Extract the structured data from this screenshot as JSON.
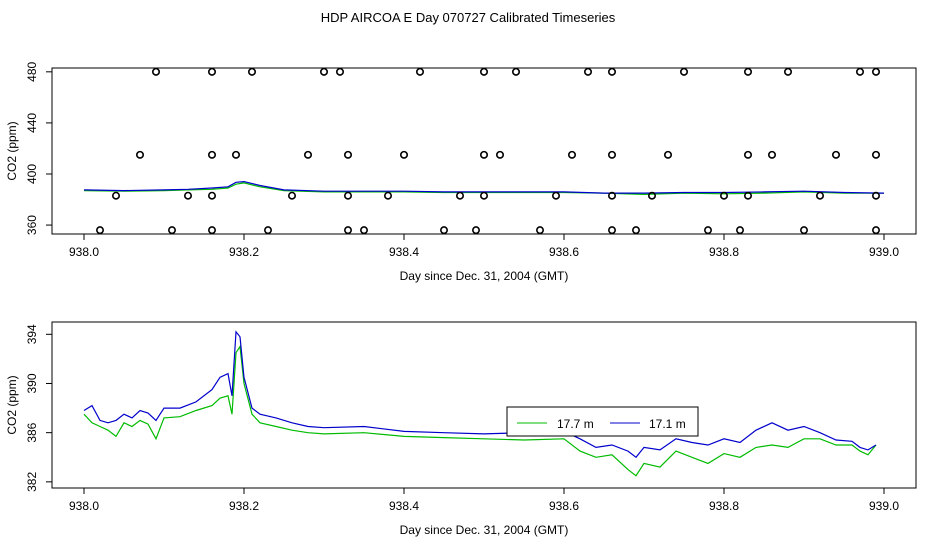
{
  "title": "HDP AIRCOA E  Day 070727  Calibrated Timeseries",
  "chart_data": [
    {
      "type": "scatter",
      "xlabel": "Day since Dec. 31, 2004 (GMT)",
      "ylabel": "CO2 (ppm)",
      "xlim": [
        937.96,
        939.04
      ],
      "ylim": [
        353,
        483
      ],
      "xticks": [
        "938.0",
        "938.2",
        "938.4",
        "938.6",
        "938.8",
        "939.0"
      ],
      "yticks": [
        "360",
        "400",
        "440",
        "480"
      ],
      "points": [
        {
          "x": 938.09,
          "y": 480
        },
        {
          "x": 938.16,
          "y": 480
        },
        {
          "x": 938.21,
          "y": 480
        },
        {
          "x": 938.3,
          "y": 480
        },
        {
          "x": 938.32,
          "y": 480
        },
        {
          "x": 938.42,
          "y": 480
        },
        {
          "x": 938.5,
          "y": 480
        },
        {
          "x": 938.54,
          "y": 480
        },
        {
          "x": 938.63,
          "y": 480
        },
        {
          "x": 938.66,
          "y": 480
        },
        {
          "x": 938.75,
          "y": 480
        },
        {
          "x": 938.83,
          "y": 480
        },
        {
          "x": 938.88,
          "y": 480
        },
        {
          "x": 938.97,
          "y": 480
        },
        {
          "x": 938.99,
          "y": 480
        },
        {
          "x": 938.07,
          "y": 415
        },
        {
          "x": 938.16,
          "y": 415
        },
        {
          "x": 938.19,
          "y": 415
        },
        {
          "x": 938.28,
          "y": 415
        },
        {
          "x": 938.33,
          "y": 415
        },
        {
          "x": 938.4,
          "y": 415
        },
        {
          "x": 938.5,
          "y": 415
        },
        {
          "x": 938.52,
          "y": 415
        },
        {
          "x": 938.61,
          "y": 415
        },
        {
          "x": 938.66,
          "y": 415
        },
        {
          "x": 938.73,
          "y": 415
        },
        {
          "x": 938.83,
          "y": 415
        },
        {
          "x": 938.86,
          "y": 415
        },
        {
          "x": 938.94,
          "y": 415
        },
        {
          "x": 938.99,
          "y": 415
        },
        {
          "x": 938.04,
          "y": 383
        },
        {
          "x": 938.13,
          "y": 383
        },
        {
          "x": 938.16,
          "y": 383
        },
        {
          "x": 938.26,
          "y": 383
        },
        {
          "x": 938.33,
          "y": 383
        },
        {
          "x": 938.38,
          "y": 383
        },
        {
          "x": 938.47,
          "y": 383
        },
        {
          "x": 938.5,
          "y": 383
        },
        {
          "x": 938.59,
          "y": 383
        },
        {
          "x": 938.66,
          "y": 383
        },
        {
          "x": 938.71,
          "y": 383
        },
        {
          "x": 938.8,
          "y": 383
        },
        {
          "x": 938.83,
          "y": 383
        },
        {
          "x": 938.92,
          "y": 383
        },
        {
          "x": 938.99,
          "y": 383
        },
        {
          "x": 938.02,
          "y": 356
        },
        {
          "x": 938.11,
          "y": 356
        },
        {
          "x": 938.16,
          "y": 356
        },
        {
          "x": 938.23,
          "y": 356
        },
        {
          "x": 938.33,
          "y": 356
        },
        {
          "x": 938.35,
          "y": 356
        },
        {
          "x": 938.45,
          "y": 356
        },
        {
          "x": 938.49,
          "y": 356
        },
        {
          "x": 938.57,
          "y": 356
        },
        {
          "x": 938.66,
          "y": 356
        },
        {
          "x": 938.69,
          "y": 356
        },
        {
          "x": 938.78,
          "y": 356
        },
        {
          "x": 938.82,
          "y": 356
        },
        {
          "x": 938.9,
          "y": 356
        },
        {
          "x": 938.99,
          "y": 356
        }
      ],
      "series": [
        {
          "color": "#00bb00",
          "x": [
            938.0,
            938.05,
            938.1,
            938.13,
            938.16,
            938.18,
            938.19,
            938.2,
            938.22,
            938.25,
            938.3,
            938.35,
            938.4,
            938.45,
            938.5,
            938.55,
            938.6,
            938.65,
            938.7,
            938.75,
            938.8,
            938.85,
            938.9,
            938.95,
            939.0
          ],
          "y": [
            387,
            386.5,
            387,
            387.5,
            388,
            389,
            392,
            393,
            390,
            387,
            386,
            386,
            386,
            385.5,
            385.5,
            385.5,
            385.5,
            385,
            384,
            385,
            384.5,
            385,
            386,
            385,
            385
          ]
        },
        {
          "color": "#0000cc",
          "x": [
            938.0,
            938.05,
            938.1,
            938.13,
            938.16,
            938.18,
            938.19,
            938.2,
            938.22,
            938.25,
            938.3,
            938.35,
            938.4,
            938.45,
            938.5,
            938.55,
            938.6,
            938.65,
            938.7,
            938.75,
            938.8,
            938.85,
            938.9,
            938.95,
            939.0
          ],
          "y": [
            387.5,
            387,
            387.5,
            388,
            389,
            390,
            393.5,
            394,
            391,
            387.5,
            386.5,
            386.5,
            386.5,
            386,
            386,
            386,
            386,
            385,
            385,
            385.5,
            385.5,
            386,
            386.5,
            385.5,
            385
          ]
        }
      ]
    },
    {
      "type": "line",
      "xlabel": "Day since Dec. 31, 2004 (GMT)",
      "ylabel": "CO2 (ppm)",
      "xlim": [
        937.96,
        939.04
      ],
      "ylim": [
        381.5,
        395
      ],
      "xticks": [
        "938.0",
        "938.2",
        "938.4",
        "938.6",
        "938.8",
        "939.0"
      ],
      "yticks": [
        "382",
        "386",
        "390",
        "394"
      ],
      "legend": "center-right",
      "series": [
        {
          "name": "17.7 m",
          "color": "#00bb00",
          "x": [
            938.0,
            938.01,
            938.02,
            938.03,
            938.04,
            938.05,
            938.06,
            938.07,
            938.08,
            938.09,
            938.1,
            938.12,
            938.14,
            938.16,
            938.17,
            938.18,
            938.185,
            938.19,
            938.195,
            938.2,
            938.21,
            938.22,
            938.24,
            938.26,
            938.28,
            938.3,
            938.35,
            938.4,
            938.45,
            938.5,
            938.55,
            938.6,
            938.62,
            938.64,
            938.66,
            938.68,
            938.69,
            938.7,
            938.72,
            938.74,
            938.76,
            938.78,
            938.8,
            938.82,
            938.84,
            938.86,
            938.88,
            938.9,
            938.92,
            938.94,
            938.96,
            938.97,
            938.98,
            938.99
          ],
          "y": [
            387.5,
            386.8,
            386.5,
            386.2,
            385.7,
            386.8,
            386.5,
            387.0,
            386.7,
            385.5,
            387.2,
            387.3,
            387.8,
            388.2,
            388.8,
            389.0,
            387.5,
            392.5,
            393.0,
            390.0,
            387.5,
            386.8,
            386.5,
            386.2,
            386.0,
            385.9,
            386.0,
            385.7,
            385.6,
            385.5,
            385.4,
            385.5,
            384.5,
            384.0,
            384.2,
            383.0,
            382.5,
            383.5,
            383.2,
            384.5,
            384.0,
            383.5,
            384.3,
            384.0,
            384.8,
            385.0,
            384.8,
            385.5,
            385.5,
            385.0,
            385.0,
            384.5,
            384.2,
            385.0
          ]
        },
        {
          "name": "17.1 m",
          "color": "#0000cc",
          "x": [
            938.0,
            938.01,
            938.02,
            938.03,
            938.04,
            938.05,
            938.06,
            938.07,
            938.08,
            938.09,
            938.1,
            938.12,
            938.14,
            938.16,
            938.17,
            938.18,
            938.185,
            938.19,
            938.195,
            938.2,
            938.21,
            938.22,
            938.24,
            938.26,
            938.28,
            938.3,
            938.35,
            938.4,
            938.45,
            938.5,
            938.55,
            938.6,
            938.62,
            938.64,
            938.66,
            938.68,
            938.69,
            938.7,
            938.72,
            938.74,
            938.76,
            938.78,
            938.8,
            938.82,
            938.84,
            938.86,
            938.88,
            938.9,
            938.92,
            938.94,
            938.96,
            938.97,
            938.98,
            938.99
          ],
          "y": [
            387.8,
            388.2,
            387.0,
            386.8,
            387.0,
            387.5,
            387.2,
            387.8,
            387.6,
            387.0,
            388.0,
            388.0,
            388.5,
            389.5,
            390.5,
            390.8,
            389.0,
            394.2,
            393.8,
            390.5,
            388.0,
            387.5,
            387.2,
            386.8,
            386.5,
            386.4,
            386.5,
            386.1,
            386.0,
            385.9,
            386.0,
            386.1,
            385.5,
            384.8,
            385.0,
            384.5,
            384.0,
            384.8,
            384.6,
            385.5,
            385.2,
            385.0,
            385.5,
            385.2,
            386.2,
            386.8,
            386.2,
            386.5,
            386.0,
            385.4,
            385.3,
            384.8,
            384.6,
            385.0
          ]
        }
      ]
    }
  ]
}
